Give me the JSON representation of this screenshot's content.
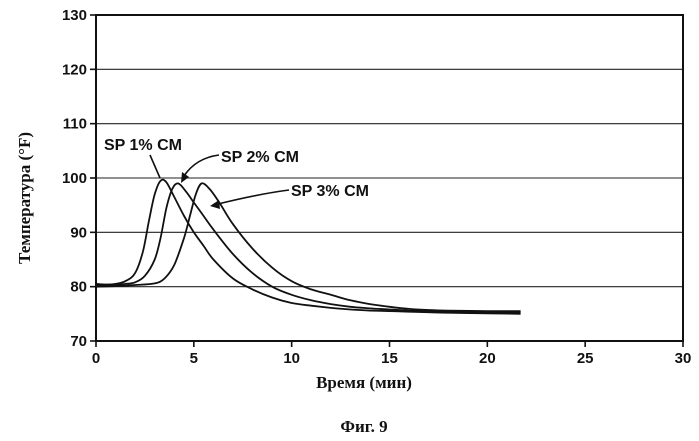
{
  "chart_data": {
    "type": "line",
    "xlabel": "Время (мин)",
    "ylabel": "Температура (°F)",
    "caption": "Фиг. 9",
    "xlim": [
      0,
      30
    ],
    "ylim": [
      70,
      130
    ],
    "xticks": [
      "0",
      "5",
      "10",
      "15",
      "20",
      "25",
      "30"
    ],
    "yticks": [
      "70",
      "80",
      "90",
      "100",
      "110",
      "120",
      "130"
    ],
    "grid": "horizontal",
    "legend": "none",
    "line_color": "#111111",
    "annotations": [
      "SP 1% CM",
      "SP 2% CM",
      "SP 3% CM"
    ],
    "series": [
      {
        "name": "SP 1% CM",
        "x": [
          0,
          0.5,
          1,
          1.5,
          2,
          2.4,
          2.7,
          3.0,
          3.3,
          3.6,
          4.0,
          4.5,
          5,
          5.5,
          6,
          7,
          8,
          9,
          10,
          11,
          12,
          13,
          14,
          15,
          16,
          18,
          20,
          21.7
        ],
        "y": [
          80.5,
          80.4,
          80.5,
          81,
          82.5,
          86.5,
          92,
          97,
          99.5,
          99.2,
          96.5,
          93,
          90,
          87.5,
          85,
          81.5,
          79.5,
          78,
          77,
          76.5,
          76.1,
          75.8,
          75.6,
          75.5,
          75.4,
          75.2,
          75.1,
          75
        ]
      },
      {
        "name": "SP 2% CM",
        "x": [
          0,
          1,
          1.5,
          2,
          2.5,
          3.0,
          3.3,
          3.6,
          3.9,
          4.2,
          4.6,
          5,
          5.5,
          6,
          7,
          8,
          9,
          10,
          11,
          12,
          13,
          14,
          15,
          16,
          18,
          20,
          21.7
        ],
        "y": [
          80.2,
          80.3,
          80.5,
          80.8,
          82,
          85,
          89,
          94.5,
          98,
          99,
          97.5,
          95.5,
          93,
          90.5,
          86,
          82.5,
          80,
          78.5,
          77.5,
          76.8,
          76.3,
          76,
          75.8,
          75.6,
          75.4,
          75.3,
          75.3
        ]
      },
      {
        "name": "SP 3% CM",
        "x": [
          0,
          1,
          2,
          3,
          3.5,
          4.0,
          4.5,
          4.8,
          5.1,
          5.4,
          5.8,
          6.3,
          7,
          8,
          9,
          10,
          11,
          12,
          13,
          14,
          15,
          16,
          17,
          18,
          20,
          21.7
        ],
        "y": [
          80,
          80.1,
          80.3,
          80.6,
          81.5,
          84,
          89,
          93,
          97,
          99,
          98,
          95.5,
          91.5,
          87,
          83.5,
          81,
          79.5,
          78.5,
          77.5,
          76.8,
          76.3,
          75.9,
          75.7,
          75.6,
          75.5,
          75.5
        ]
      }
    ]
  }
}
